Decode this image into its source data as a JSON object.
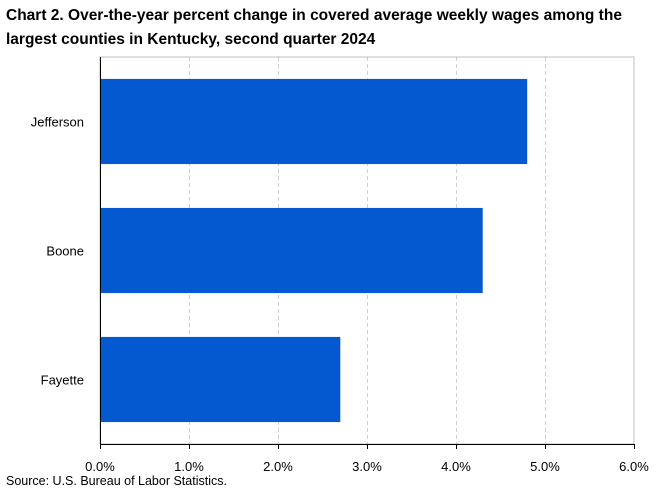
{
  "title": "Chart 2. Over-the-year percent change in covered average weekly wages among the largest counties in Kentucky, second quarter 2024",
  "source": "Source: U.S. Bureau of Labor Statistics.",
  "colors": {
    "bar": "#0459d0",
    "grid": "#d0d0d0",
    "axis": "#000000"
  },
  "chart_data": {
    "type": "bar",
    "orientation": "horizontal",
    "categories": [
      "Jefferson",
      "Boone",
      "Fayette"
    ],
    "values": [
      4.8,
      4.3,
      2.7
    ],
    "xlim": [
      0,
      6
    ],
    "xticks": [
      0,
      1,
      2,
      3,
      4,
      5,
      6
    ],
    "xtick_labels": [
      "0.0%",
      "1.0%",
      "2.0%",
      "3.0%",
      "4.0%",
      "5.0%",
      "6.0%"
    ],
    "grid": "vertical-dashed",
    "legend": "none"
  }
}
